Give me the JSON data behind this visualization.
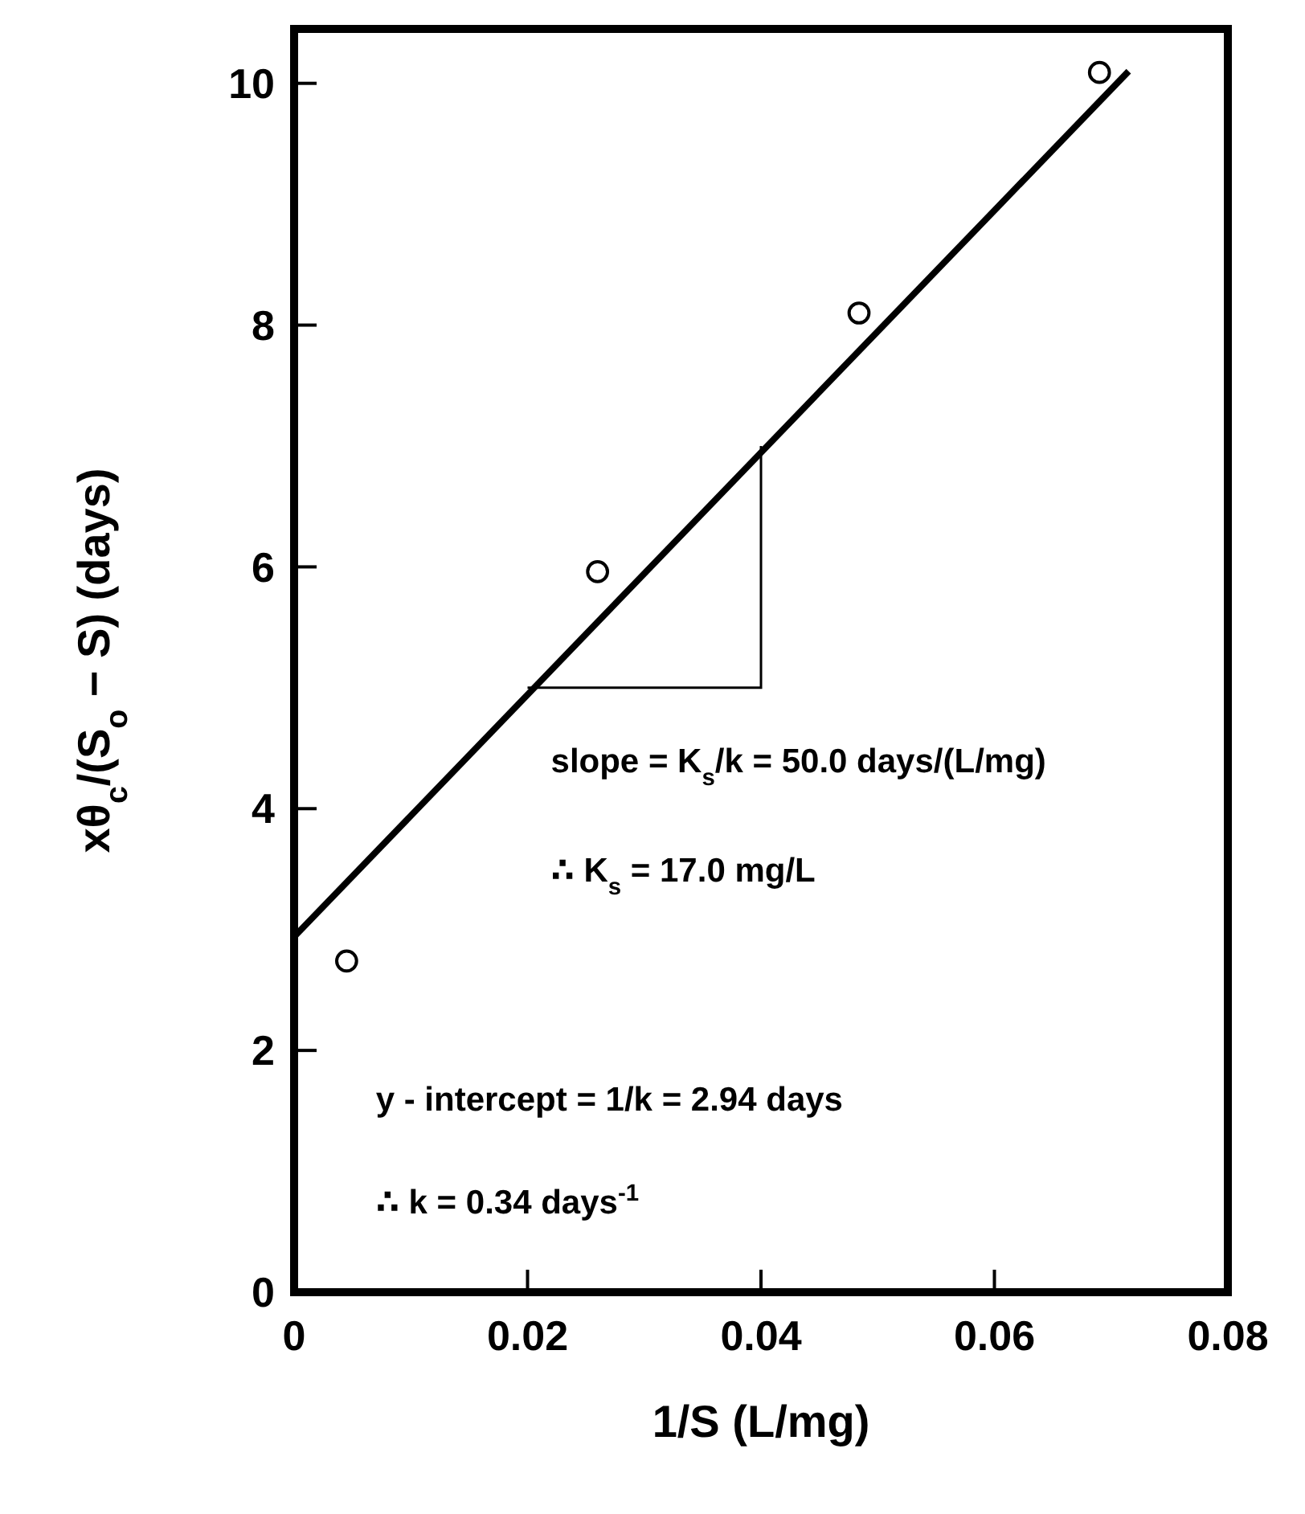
{
  "chart_data": {
    "type": "scatter",
    "xlabel": "1/S (L/mg)",
    "ylabel": "xθ$_{c}$/(S$_{o}$ − S) (days)",
    "xlim": [
      0,
      0.08
    ],
    "xticks": [
      0,
      0.02,
      0.04,
      0.06,
      0.08
    ],
    "ylim": [
      0,
      10.45
    ],
    "yticks": [
      0,
      2,
      4,
      6,
      8,
      10
    ],
    "grid": false,
    "series": [
      {
        "color": "#000000",
        "marker": "circle",
        "x": [
          0.0045,
          0.026,
          0.0484,
          0.069
        ],
        "values": [
          2.74,
          5.96,
          8.1,
          10.09
        ]
      },
      {
        "type": "line",
        "color": "#000000",
        "marker": "none",
        "line_style": "solid",
        "x": [
          0,
          0.0715
        ],
        "values": [
          2.94,
          10.1
        ]
      }
    ],
    "annotations": [
      "slope = K$_{s}$/k = 50.0 days/(L/mg)",
      "∴ K$_{s}$ = 17.0 mg/L",
      "y - intercept = 1/k = 2.94 days",
      "∴ k = 0.34 days$^{-1}$"
    ]
  }
}
